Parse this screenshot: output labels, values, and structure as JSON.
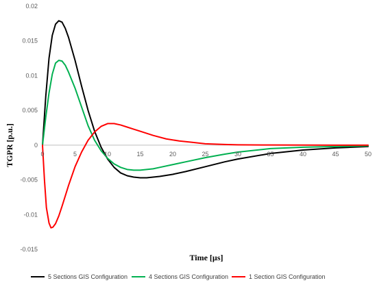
{
  "chart_data": {
    "type": "line",
    "title": "",
    "xlabel": "Time [µs]",
    "ylabel": "TGPR [p.u.]",
    "xlim": [
      0,
      50
    ],
    "ylim": [
      -0.015,
      0.02
    ],
    "x_ticks": [
      "0",
      "5",
      "10",
      "15",
      "20",
      "25",
      "30",
      "35",
      "40",
      "45",
      "50"
    ],
    "y_ticks": [
      "0.02",
      "0.015",
      "0.01",
      "0.005",
      "0",
      "-0.005",
      "-0.01",
      "-0.015"
    ],
    "grid": false,
    "legend_position": "bottom",
    "series": [
      {
        "name": "5 Sections GIS Configuration",
        "color": "#000000",
        "x": [
          0,
          0.5,
          1,
          1.5,
          2,
          2.5,
          3,
          3.5,
          4,
          5,
          6,
          7,
          8,
          9,
          10,
          11,
          12,
          13,
          14,
          15,
          16,
          17,
          18,
          20,
          22,
          25,
          28,
          30,
          35,
          40,
          45,
          50
        ],
        "y": [
          0,
          0.007,
          0.0125,
          0.0158,
          0.0174,
          0.0179,
          0.0177,
          0.0168,
          0.0155,
          0.0122,
          0.0085,
          0.005,
          0.002,
          -0.0003,
          -0.002,
          -0.0032,
          -0.004,
          -0.0044,
          -0.0046,
          -0.0047,
          -0.0047,
          -0.0046,
          -0.0045,
          -0.0042,
          -0.0038,
          -0.0031,
          -0.0024,
          -0.002,
          -0.0012,
          -0.0007,
          -0.0004,
          -0.0002
        ]
      },
      {
        "name": "4 Sections GIS Configuration",
        "color": "#00b050",
        "x": [
          0,
          0.5,
          1,
          1.5,
          2,
          2.5,
          3,
          3.5,
          4,
          5,
          6,
          7,
          8,
          9,
          10,
          11,
          12,
          13,
          14,
          15,
          16,
          17,
          18,
          20,
          22,
          25,
          28,
          30,
          35,
          40,
          45,
          50
        ],
        "y": [
          0,
          0.004,
          0.0075,
          0.0102,
          0.0118,
          0.0122,
          0.0121,
          0.0115,
          0.0105,
          0.0082,
          0.0055,
          0.0028,
          0.0007,
          -0.0008,
          -0.0019,
          -0.0027,
          -0.0032,
          -0.0035,
          -0.0036,
          -0.0036,
          -0.0035,
          -0.0034,
          -0.0032,
          -0.0028,
          -0.0024,
          -0.0018,
          -0.0013,
          -0.001,
          -0.0005,
          -0.0003,
          -0.0002,
          -0.0001
        ]
      },
      {
        "name": "1 Section GIS Configuration",
        "color": "#ff0000",
        "x": [
          0,
          0.3,
          0.6,
          1,
          1.3,
          1.6,
          2,
          2.5,
          3,
          3.5,
          4,
          5,
          6,
          7,
          8,
          9,
          10,
          11,
          12,
          13,
          14,
          15,
          17,
          19,
          21,
          23,
          25,
          28,
          30,
          35,
          40,
          45,
          50
        ],
        "y": [
          0,
          -0.005,
          -0.009,
          -0.0112,
          -0.0119,
          -0.0118,
          -0.0113,
          -0.0102,
          -0.0088,
          -0.0073,
          -0.0058,
          -0.0031,
          -0.001,
          0.0007,
          0.0019,
          0.0027,
          0.0031,
          0.0031,
          0.0029,
          0.0026,
          0.0023,
          0.002,
          0.0014,
          0.0009,
          0.0006,
          0.0004,
          0.0002,
          0.0001,
          5e-05,
          2e-05,
          1e-05,
          0,
          0
        ]
      }
    ]
  }
}
